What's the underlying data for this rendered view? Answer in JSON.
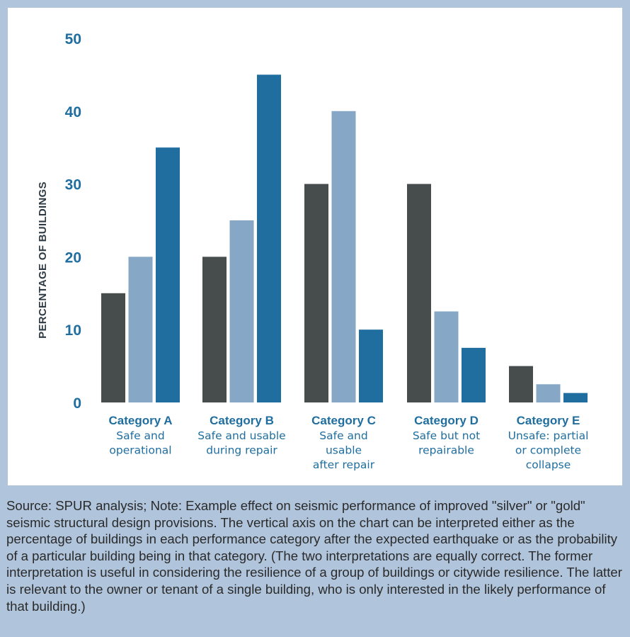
{
  "chart_data": {
    "type": "bar",
    "title": "",
    "ylabel": "PERCENTAGE OF BUILDINGS",
    "xlabel": "",
    "ylim": [
      0,
      50
    ],
    "yticks": [
      0,
      10,
      20,
      30,
      40,
      50
    ],
    "categories": [
      {
        "title": "Category A",
        "sub": [
          "Safe and",
          "operational"
        ]
      },
      {
        "title": "Category B",
        "sub": [
          "Safe and usable",
          "during repair"
        ]
      },
      {
        "title": "Category C",
        "sub": [
          "Safe and",
          "usable",
          "after repair"
        ]
      },
      {
        "title": "Category D",
        "sub": [
          "Safe but not",
          "repairable"
        ]
      },
      {
        "title": "Category E",
        "sub": [
          "Unsafe: partial",
          "or complete",
          "collapse"
        ]
      }
    ],
    "series": [
      {
        "color": "#474c4d",
        "values": [
          15,
          20,
          30,
          30,
          5
        ]
      },
      {
        "color": "#86a7c6",
        "values": [
          20,
          25,
          40,
          12.5,
          2.5
        ]
      },
      {
        "color": "#1f6e9f",
        "values": [
          35,
          45,
          10,
          7.5,
          1.3
        ]
      }
    ],
    "grid": false,
    "legend": "none"
  },
  "caption": "Source: SPUR analysis; Note: Example effect on seismic performance of improved \"silver\" or \"gold\" seismic structural design provisions. The vertical axis on the chart can be interpreted either as the percentage of buildings in each performance category after the expected earthquake or as the probability of a particular building being in that category. (The two interpretations are equally correct. The former interpretation is useful in considering the resilience of a group of buildings or citywide resilience. The latter is relevant to the owner or tenant of a single building, who is only interested in the likely performance of that building.)"
}
